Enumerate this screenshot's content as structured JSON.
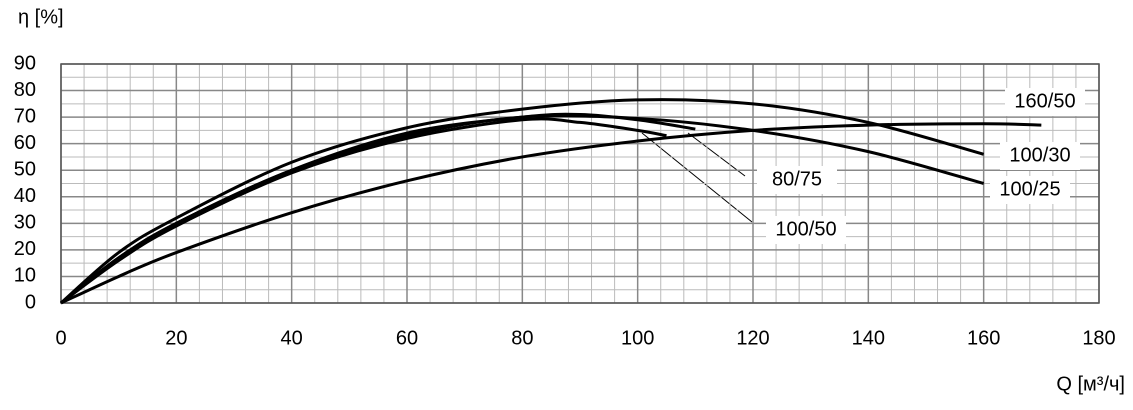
{
  "chart_data": {
    "type": "line",
    "y_label": "η [%]",
    "x_label": "Q [м³/ч]",
    "xlim": [
      0,
      180
    ],
    "xticks": [
      0,
      20,
      40,
      60,
      80,
      100,
      120,
      140,
      160,
      180
    ],
    "ylim": [
      0,
      90
    ],
    "yticks": [
      0,
      10,
      20,
      30,
      40,
      50,
      60,
      70,
      80,
      90
    ],
    "grid": true,
    "minor_divisions": {
      "x": 5,
      "y": 2
    },
    "series": [
      {
        "name": "160/50",
        "color": "#000000",
        "x": [
          0,
          10,
          20,
          40,
          60,
          80,
          100,
          120,
          140,
          160,
          170
        ],
        "values": [
          0,
          10,
          19,
          34,
          46,
          55,
          61,
          65,
          67,
          67.5,
          67
        ]
      },
      {
        "name": "100/30",
        "color": "#000000",
        "x": [
          0,
          10,
          20,
          40,
          60,
          80,
          100,
          120,
          140,
          160
        ],
        "values": [
          0,
          19,
          32,
          53,
          66,
          73,
          76.5,
          75,
          68,
          56
        ]
      },
      {
        "name": "100/25",
        "color": "#000000",
        "x": [
          0,
          10,
          20,
          40,
          60,
          80,
          100,
          120,
          140,
          160
        ],
        "values": [
          0,
          17,
          30,
          50,
          63,
          70,
          69.5,
          65,
          57,
          45
        ]
      },
      {
        "name": "80/75",
        "color": "#000000",
        "x": [
          0,
          10,
          20,
          40,
          60,
          80,
          90,
          100,
          110
        ],
        "values": [
          0,
          17,
          30,
          50,
          64,
          70,
          71,
          69,
          65.5
        ]
      },
      {
        "name": "100/50",
        "color": "#000000",
        "x": [
          0,
          10,
          20,
          40,
          60,
          80,
          90,
          100,
          105
        ],
        "values": [
          0,
          16,
          29,
          49,
          62,
          69,
          68,
          65,
          63
        ]
      }
    ]
  }
}
